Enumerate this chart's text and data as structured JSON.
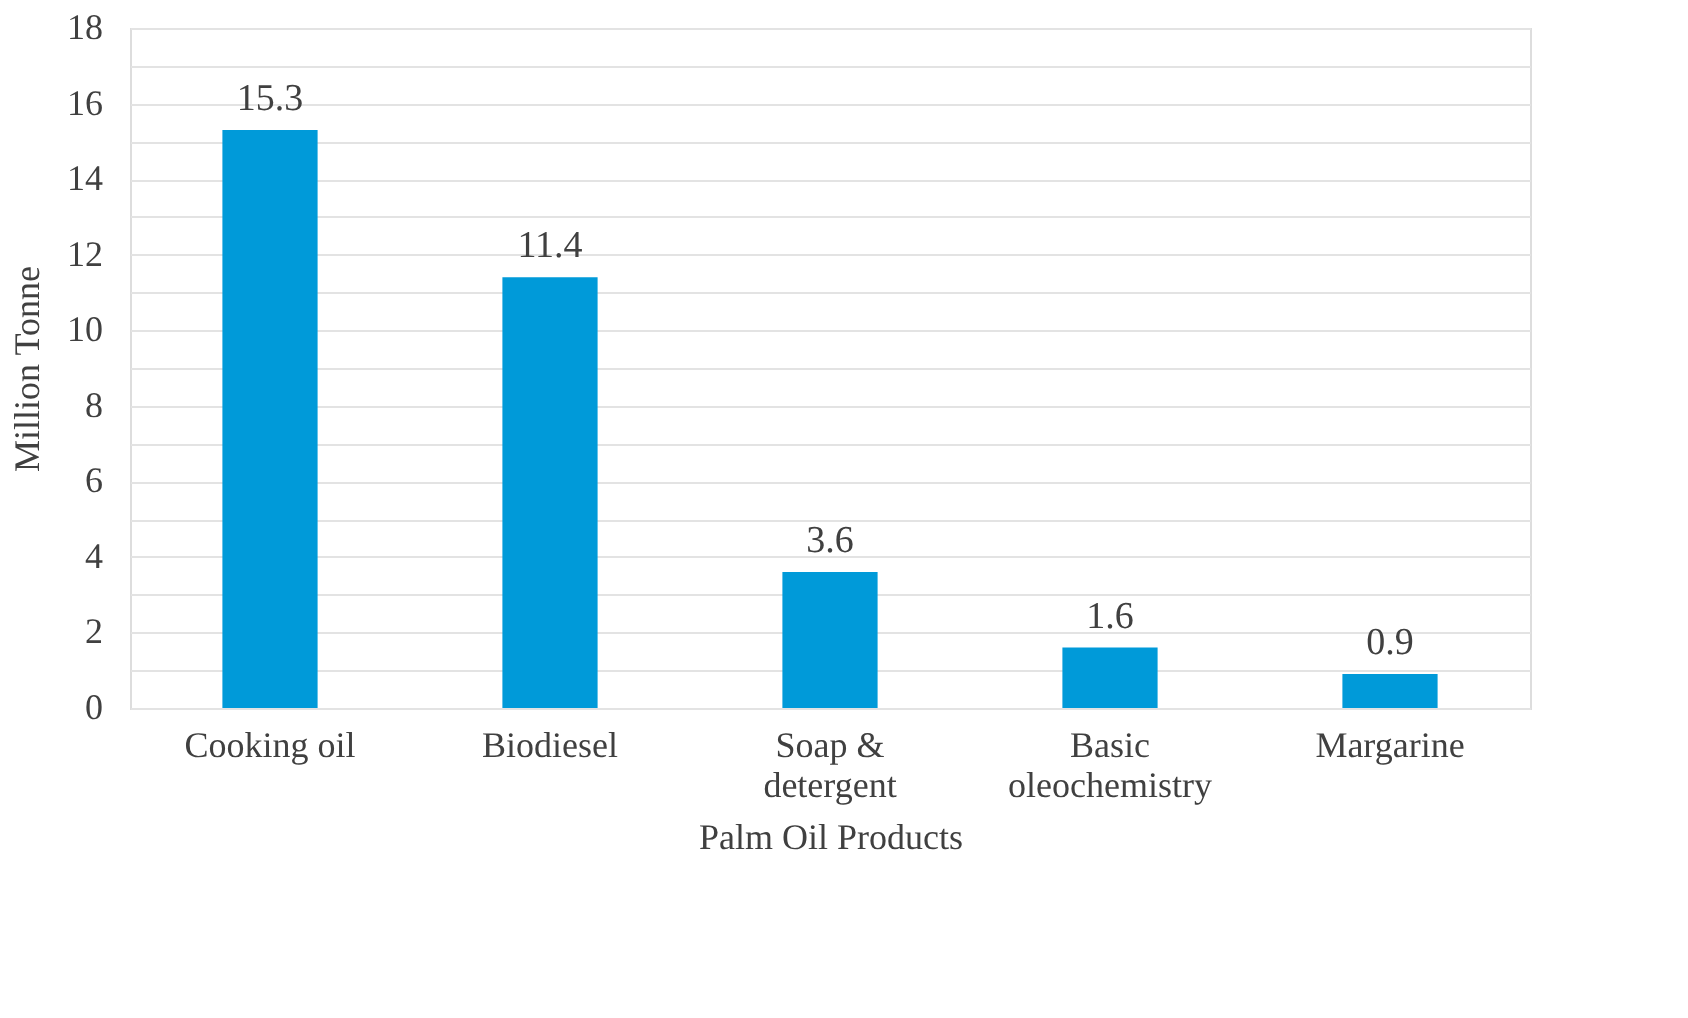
{
  "chart_data": {
    "type": "bar",
    "xlabel": "Palm Oil Products",
    "ylabel": "Million Tonne",
    "categories": [
      "Cooking oil",
      "Biodiesel",
      "Soap & detergent",
      "Basic oleochemistry",
      "Margarine"
    ],
    "values": [
      15.3,
      11.4,
      3.6,
      1.6,
      0.9
    ],
    "color": "#009ad9",
    "data_labels": true,
    "ylim": [
      0,
      18
    ],
    "yticks": [
      0,
      {
        "value": 1,
        "label": null
      },
      2,
      {
        "value": 3,
        "label": null
      },
      4,
      {
        "value": 5,
        "label": null
      },
      6,
      {
        "value": 7,
        "label": null
      },
      8,
      {
        "value": 9,
        "label": null
      },
      10,
      {
        "value": 11,
        "label": null
      },
      12,
      {
        "value": 13,
        "label": null
      },
      14,
      {
        "value": 15,
        "label": null
      },
      16,
      {
        "value": 17,
        "label": null
      },
      18
    ],
    "grid": "y"
  }
}
